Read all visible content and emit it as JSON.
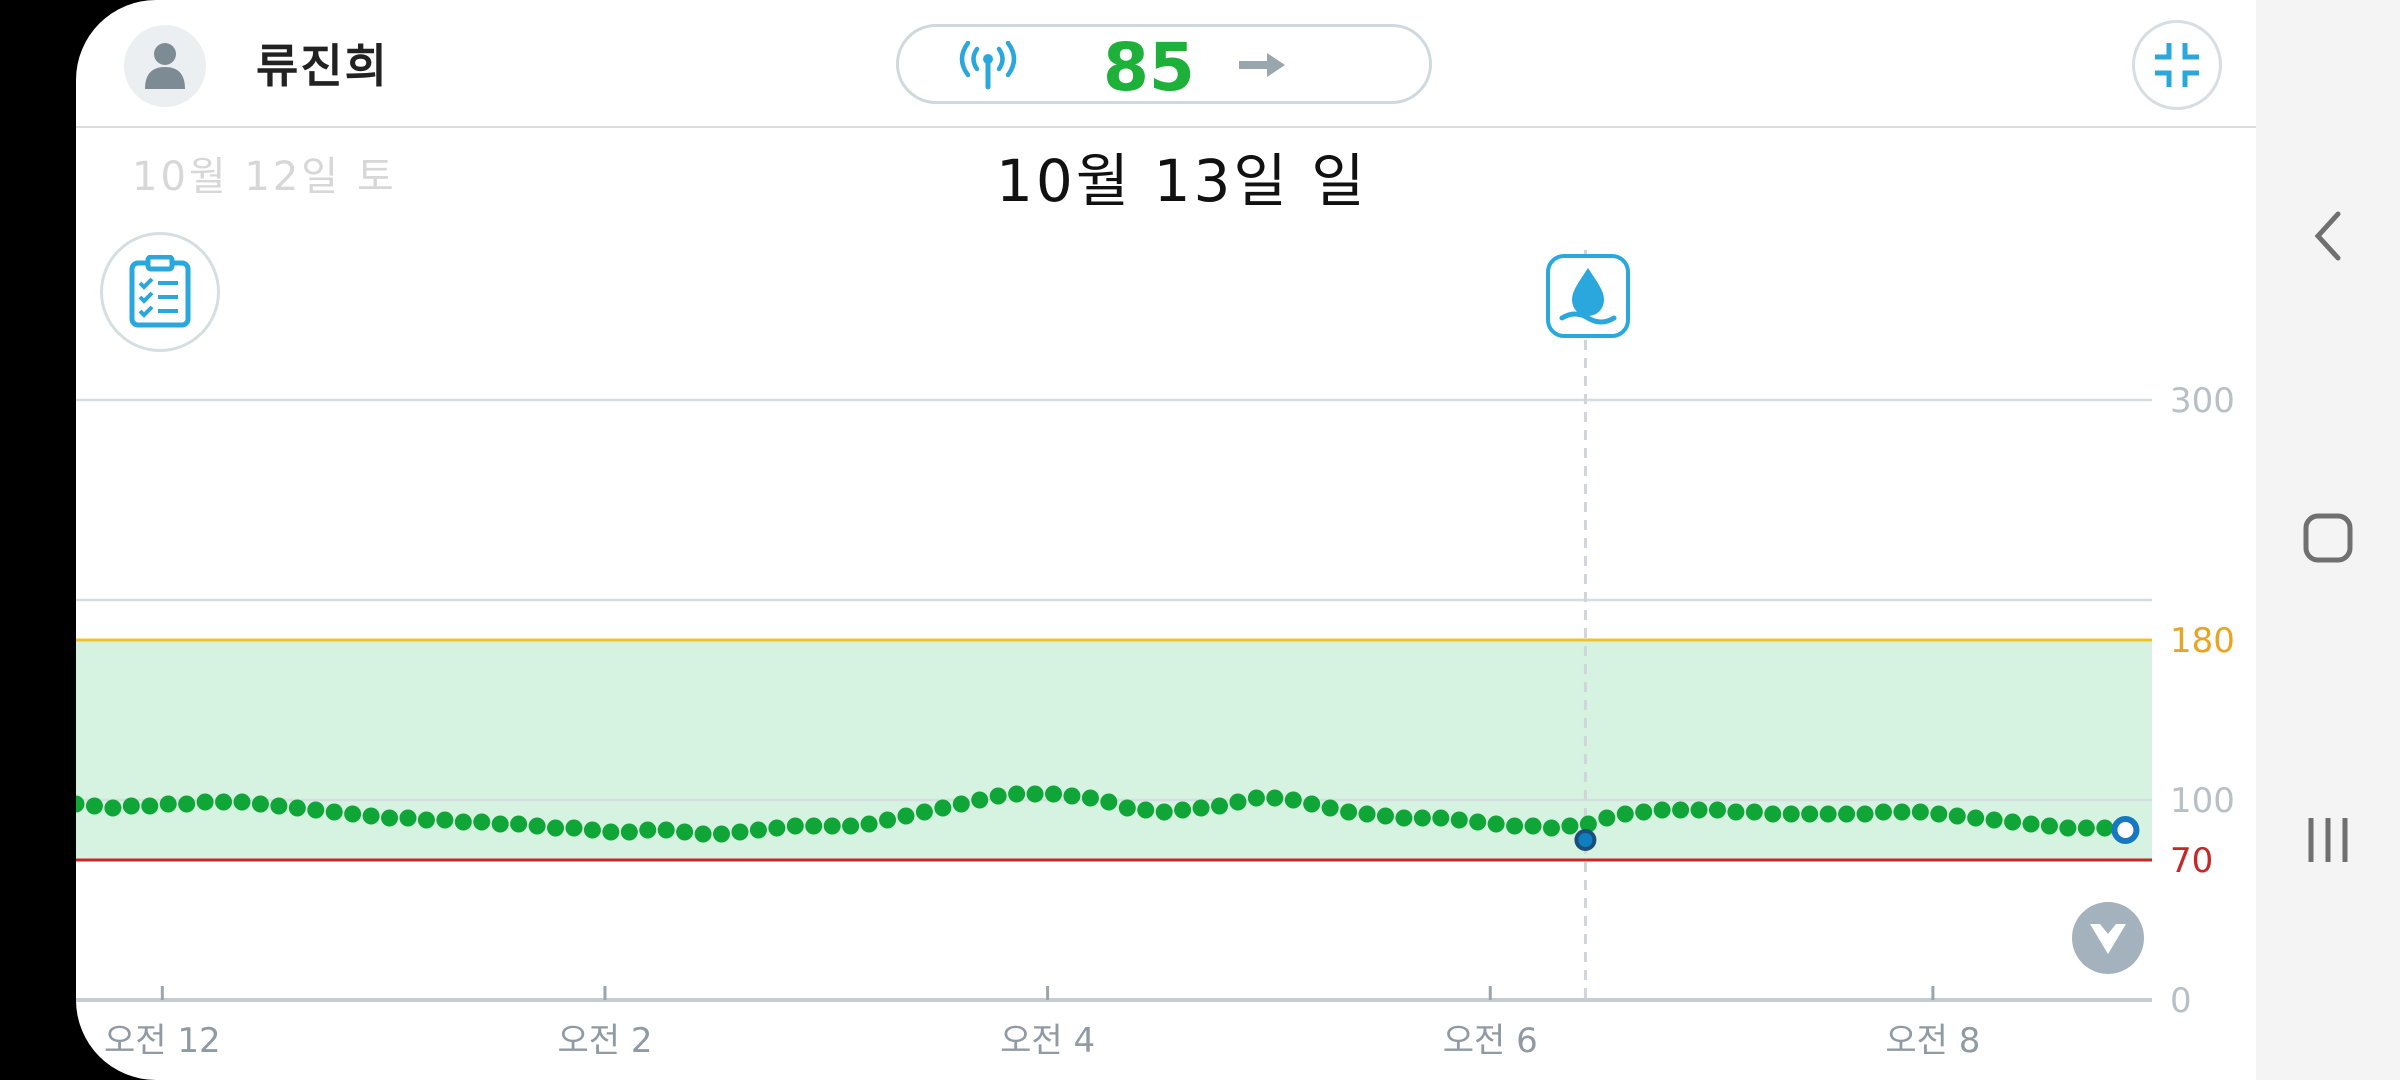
{
  "header": {
    "user_name": "류진희",
    "glucose_value": "85",
    "current_date": "10월 13일 일",
    "previous_date": "10월 12일 토"
  },
  "icons": {
    "avatar": "person-icon",
    "signal": "sensor-signal-icon",
    "trend": "trend-arrow-right-icon",
    "collapse": "collapse-icon",
    "log": "clipboard-checklist-icon",
    "event": "water-drop-icon",
    "scroll_down": "chevron-down-icon",
    "nav_back": "back-icon",
    "nav_home": "home-icon",
    "nav_recent": "recent-apps-icon"
  },
  "colors": {
    "in_range_fill": "#d5f3e0",
    "high_line": "#f0c22a",
    "low_line": "#c62828",
    "reading_dot": "#0fa637",
    "accent_blue": "#2aa8de",
    "value_green": "#1db13a"
  },
  "chart_data": {
    "type": "scatter",
    "y_ticks": [
      0,
      70,
      100,
      180,
      300
    ],
    "ylim": [
      0,
      300
    ],
    "x_tick_labels": [
      "오전 12",
      "오전 2",
      "오전 4",
      "오전 6",
      "오전 8"
    ],
    "x_tick_hours": [
      0,
      2,
      4,
      6,
      8
    ],
    "xlim_hours": [
      -0.39,
      8.99
    ],
    "target_range": [
      70,
      180
    ],
    "high_threshold": 180,
    "low_threshold": 70,
    "event_marker": {
      "type": "water",
      "hour": 6.43,
      "value": 80
    },
    "latest_reading": {
      "hour": 8.87,
      "value": 85
    },
    "series": [
      {
        "x_start_hour": -0.39,
        "interval_minutes": 5,
        "values": [
          98,
          97,
          96,
          97,
          97,
          98,
          98,
          99,
          99,
          99,
          98,
          97,
          96,
          95,
          94,
          93,
          92,
          91,
          91,
          90,
          90,
          89,
          89,
          88,
          88,
          87,
          86,
          86,
          85,
          84,
          84,
          85,
          85,
          84,
          83,
          83,
          84,
          85,
          86,
          87,
          87,
          87,
          87,
          88,
          90,
          92,
          94,
          96,
          98,
          100,
          102,
          103,
          103,
          103,
          102,
          101,
          99,
          96,
          95,
          94,
          95,
          96,
          97,
          99,
          101,
          101,
          100,
          98,
          96,
          94,
          93,
          92,
          91,
          91,
          91,
          90,
          89,
          88,
          87,
          87,
          86,
          87,
          88,
          91,
          93,
          94,
          95,
          95,
          95,
          95,
          94,
          94,
          93,
          93,
          93,
          93,
          93,
          93,
          94,
          94,
          94,
          93,
          92,
          91,
          90,
          89,
          88,
          87,
          86,
          86,
          86,
          87,
          88,
          88
        ]
      }
    ]
  },
  "nav": {}
}
